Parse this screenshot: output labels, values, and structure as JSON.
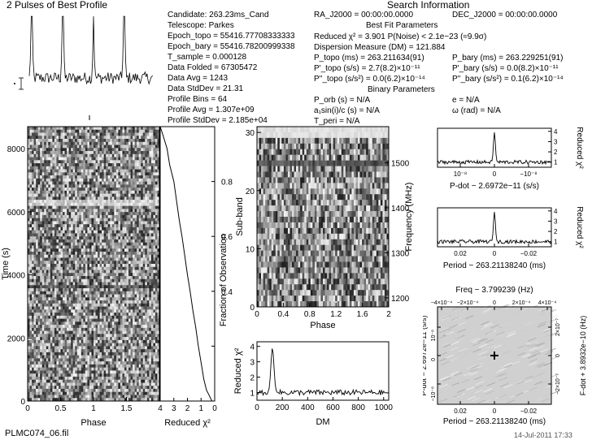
{
  "figure": {
    "profile_title": "2 Pulses of Best Profile",
    "filename": "PLMC074_06.fil",
    "date": "14-Jul-2011 17:33"
  },
  "candidate_info": {
    "left": [
      "Candidate:  263.23ms_Cand",
      "Telescope:  Parkes",
      "Epoch_topo  = 55416.77708333333",
      "Epoch_bary  = 55416.78200999338",
      "T_sample     = 0.000128",
      "Data Folded   = 67305472",
      "Data Avg       = 1243",
      "Data StdDev    = 21.31",
      "Profile Bins   = 64",
      "Profile Avg    = 1.307e+09",
      "Profile StdDev  = 2.185e+04"
    ],
    "search_title": "Search Information",
    "ra": "RA_J2000  = 00:00:00.0000",
    "dec": "DEC_J2000  = 00:00:00.0000",
    "best_fit_title": "Best Fit Parameters",
    "reduced_chi2": "Reduced χ² = 3.901    P(Noise) < 2.1e−23    (≈9.9σ)",
    "dm": "Dispersion Measure (DM) = 121.884",
    "p_topo": "P_topo (ms) = 263.211634(91)",
    "pd_topo": "P'_topo (s/s) = 2.7(8.2)×10⁻¹¹",
    "pdd_topo": "P''_topo (s/s²) = 0.0(6.2)×10⁻¹⁴",
    "p_bary": "P_bary (ms) = 263.229251(91)",
    "pd_bary": "P'_bary (s/s) = 0.0(8.2)×10⁻¹¹",
    "pdd_bary": "P''_bary (s/s²) = 0.1(6.2)×10⁻¹⁴",
    "binary_title": "Binary Parameters",
    "p_orb": "P_orb (s) = N/A",
    "asini": "a₁sin(i)/c (s) = N/A",
    "t_peri": "T_peri = N/A",
    "e": "e = N/A",
    "omega": "ω (rad) = N/A"
  },
  "chart_data": [
    {
      "type": "line",
      "name": "pulse-profile",
      "title": "2 Pulses of Best Profile",
      "x_range": [
        0,
        2
      ],
      "peaks_at_phase": [
        0.04,
        0.54,
        1.04,
        1.54
      ],
      "profile_bins": 64
    },
    {
      "type": "heatmap",
      "name": "time-phase",
      "xlabel": "Phase",
      "ylabel": "Time (s)",
      "xlim": [
        0,
        2
      ],
      "ylim": [
        0,
        8700
      ],
      "x_ticks": [
        "0",
        "0.5",
        "1",
        "1.5"
      ],
      "y_ticks": [
        "0",
        "2000",
        "4000",
        "6000",
        "8000"
      ]
    },
    {
      "type": "line",
      "name": "chi2-vs-time",
      "xlabel": "Reduced χ²",
      "ylabel": "Fraction of Observation",
      "x_ticks": [
        "4",
        "3",
        "2",
        "1",
        "0"
      ],
      "y_ticks": [
        "0.2",
        "0.4",
        "0.6",
        "0.8"
      ],
      "x": [
        4.0,
        3.8,
        3.5,
        3.3,
        3.0,
        2.8,
        2.6,
        2.4,
        2.2,
        2.0,
        1.8,
        1.6,
        1.4,
        1.2,
        1.0,
        0.8,
        0.6,
        0.4,
        0.2
      ],
      "y": [
        1.0,
        0.97,
        0.92,
        0.86,
        0.8,
        0.73,
        0.66,
        0.6,
        0.53,
        0.46,
        0.4,
        0.33,
        0.27,
        0.2,
        0.14,
        0.08,
        0.04,
        0.02,
        0.0
      ]
    },
    {
      "type": "heatmap",
      "name": "subband-phase",
      "xlabel": "Phase",
      "ylabel": "Sub-band",
      "y2label": "Frequency (MHz)",
      "xlim": [
        0,
        2
      ],
      "ylim": [
        0,
        31
      ],
      "x_ticks": [
        "0",
        "0.4",
        "0.8",
        "1.2",
        "1.6",
        "2"
      ],
      "y_ticks": [
        "0",
        "10",
        "20",
        "30"
      ],
      "y2_ticks": [
        "1200",
        "1300",
        "1400",
        "1500"
      ]
    },
    {
      "type": "line",
      "name": "chi2-vs-dm",
      "xlabel": "DM",
      "ylabel": "Reduced χ²",
      "xlim": [
        0,
        1040
      ],
      "ylim": [
        0.5,
        4.3
      ],
      "x_ticks": [
        "0",
        "200",
        "400",
        "600",
        "800",
        "1000"
      ],
      "y_ticks": [
        "1",
        "2",
        "3",
        "4"
      ],
      "peak": {
        "x": 122,
        "y": 3.9
      }
    },
    {
      "type": "line",
      "name": "chi2-vs-pdot",
      "xlabel": "P-dot − 2.6972e−11 (s/s)",
      "ylabel": "Reduced χ²",
      "x_ticks": [
        "10⁻⁸",
        "0",
        "−10⁻⁸"
      ],
      "y_ticks": [
        "1",
        "2",
        "3",
        "4"
      ],
      "peak": {
        "x": 0,
        "y": 3.9
      }
    },
    {
      "type": "line",
      "name": "chi2-vs-period",
      "xlabel": "Period − 263.21138240 (ms)",
      "ylabel": "Reduced χ²",
      "x_ticks": [
        "0.02",
        "0",
        "−0.02"
      ],
      "y_ticks": [
        "1",
        "2",
        "3",
        "4"
      ],
      "peak": {
        "x": 0,
        "y": 3.9
      }
    },
    {
      "type": "heatmap",
      "name": "p-pdot-plane",
      "title": "Freq − 3.799239 (Hz)",
      "xlabel": "Period − 263.21138240 (ms)",
      "ylabel": "P-dot − 2.6972e−11 (s/s)",
      "y2label": "F-dot + 3.8932e−10 (Hz)",
      "x_ticks": [
        "0.02",
        "0",
        "−0.02"
      ],
      "top_ticks": [
        "−4×10⁻⁴",
        "−2×10⁻⁴",
        "0",
        "2×10⁻⁴",
        "4×10⁻⁴"
      ],
      "y_ticks": [
        "10⁻⁸",
        "0",
        "−10⁻⁸"
      ],
      "y2_ticks": [
        "2×10⁻⁷",
        "0",
        "−2×10⁻⁷"
      ],
      "peak": {
        "x": 0,
        "y": 0
      }
    }
  ]
}
